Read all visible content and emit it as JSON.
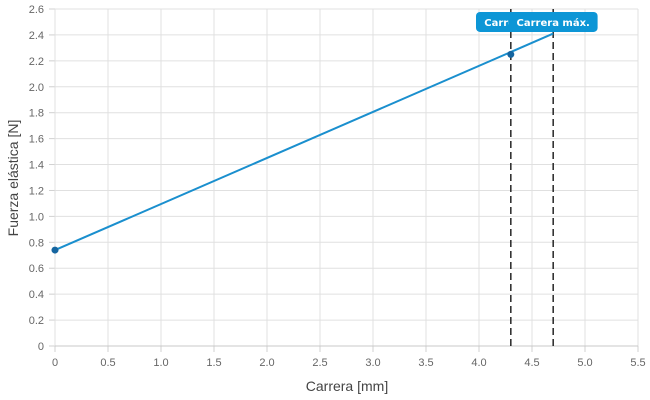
{
  "chart_data": {
    "type": "line",
    "xlabel": "Carrera [mm]",
    "ylabel": "Fuerza elástica [N]",
    "xlim": [
      0,
      5.5
    ],
    "ylim": [
      0,
      2.6
    ],
    "x_ticks": [
      "0",
      "0.5",
      "1.0",
      "1.5",
      "2.0",
      "2.5",
      "3.0",
      "3.5",
      "4.0",
      "4.5",
      "5.0",
      "5.5"
    ],
    "y_ticks": [
      "0",
      "0.2",
      "0.4",
      "0.6",
      "0.8",
      "1.0",
      "1.2",
      "1.4",
      "1.6",
      "1.8",
      "2.0",
      "2.2",
      "2.4",
      "2.6"
    ],
    "grid": true,
    "series": [
      {
        "color": "#1a8fce",
        "points": [
          [
            0,
            0.74
          ],
          [
            4.7,
            2.41
          ]
        ]
      }
    ],
    "markers": [
      {
        "x": 0,
        "y": 0.74
      },
      {
        "x": 4.3,
        "y": 2.25
      }
    ],
    "vlines": [
      {
        "x": 4.3,
        "label": "Carrera d"
      },
      {
        "x": 4.7,
        "label": "Carrera máx."
      }
    ],
    "colors": {
      "line": "#1a8fce",
      "marker": "#1565a0",
      "tag": "#0d96d6",
      "grid": "#e0e0e0",
      "vline": "#333333"
    }
  }
}
